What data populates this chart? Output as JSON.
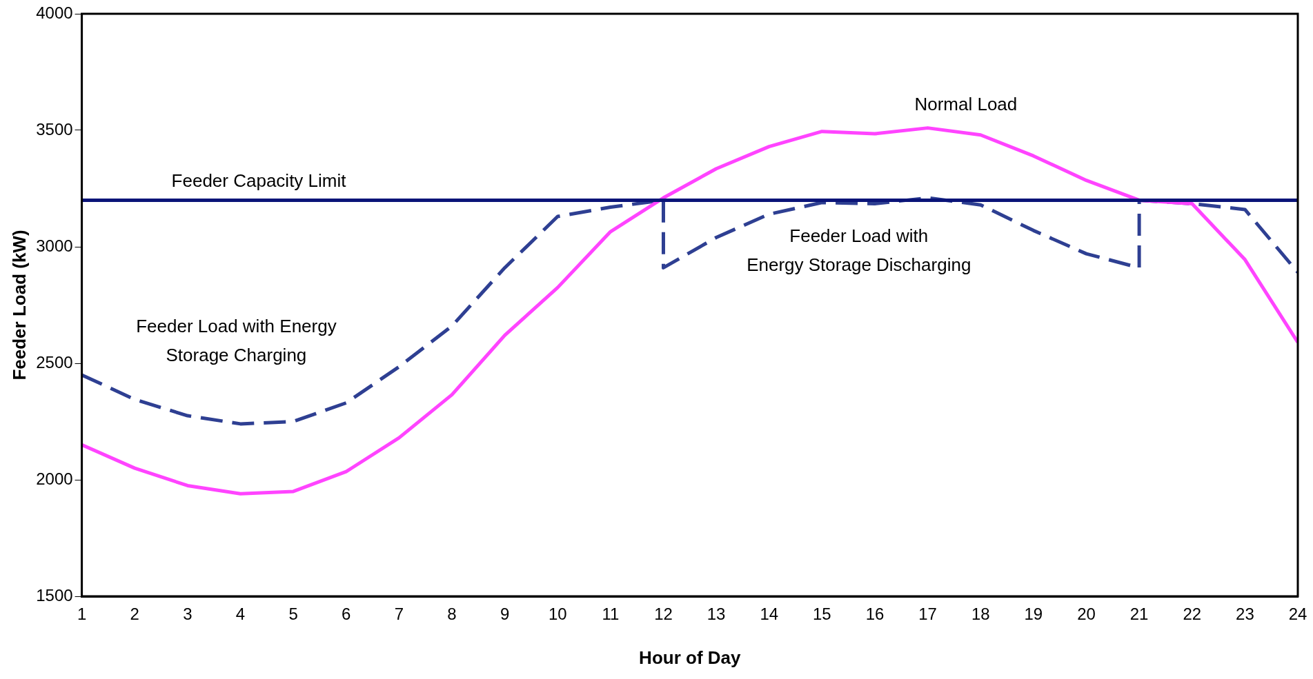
{
  "chart_data": {
    "type": "line",
    "xlabel": "Hour of Day",
    "ylabel": "Feeder Load (kW)",
    "xlim": [
      1,
      24
    ],
    "xticks": [
      1,
      2,
      3,
      4,
      5,
      6,
      7,
      8,
      9,
      10,
      11,
      12,
      13,
      14,
      15,
      16,
      17,
      18,
      19,
      20,
      21,
      22,
      23,
      24
    ],
    "ylim": [
      1500,
      4000
    ],
    "yticks": [
      1500,
      2000,
      2500,
      3000,
      3500,
      4000
    ],
    "grid": false,
    "legend": false,
    "marker": "none",
    "series": [
      {
        "color": "#ff44ff",
        "line_style": "solid",
        "x": [
          1,
          2,
          3,
          4,
          5,
          6,
          7,
          8,
          9,
          10,
          11,
          12,
          13,
          14,
          15,
          16,
          17,
          18,
          19,
          20,
          21,
          22,
          23,
          24
        ],
        "values": [
          2150,
          2050,
          1975,
          1940,
          1950,
          2035,
          2180,
          2365,
          2620,
          2825,
          3065,
          3210,
          3335,
          3430,
          3495,
          3485,
          3510,
          3480,
          3390,
          3285,
          3200,
          3185,
          2945,
          2590
        ]
      },
      {
        "color": "#2e3f92",
        "line_style": "dashed",
        "x": [
          1,
          2,
          3,
          4,
          5,
          6,
          7,
          8,
          9,
          10,
          11,
          12,
          12,
          13,
          14,
          15,
          16,
          17,
          18,
          19,
          20,
          21,
          21,
          22,
          23,
          24
        ],
        "values": [
          2450,
          2345,
          2275,
          2240,
          2250,
          2330,
          2485,
          2660,
          2910,
          3130,
          3170,
          3200,
          2910,
          3040,
          3140,
          3190,
          3185,
          3210,
          3180,
          3070,
          2970,
          2910,
          3200,
          3185,
          3160,
          2890
        ]
      }
    ],
    "ref_lines": [
      {
        "axis": "y",
        "value": 3200,
        "label": "Feeder Capacity Limit",
        "color": "#0a1478",
        "line_style": "solid"
      }
    ],
    "annotations": [
      "Normal Load",
      "Feeder Load with\nEnergy Storage Discharging",
      "Feeder Load with Energy\nStorage Charging"
    ]
  }
}
